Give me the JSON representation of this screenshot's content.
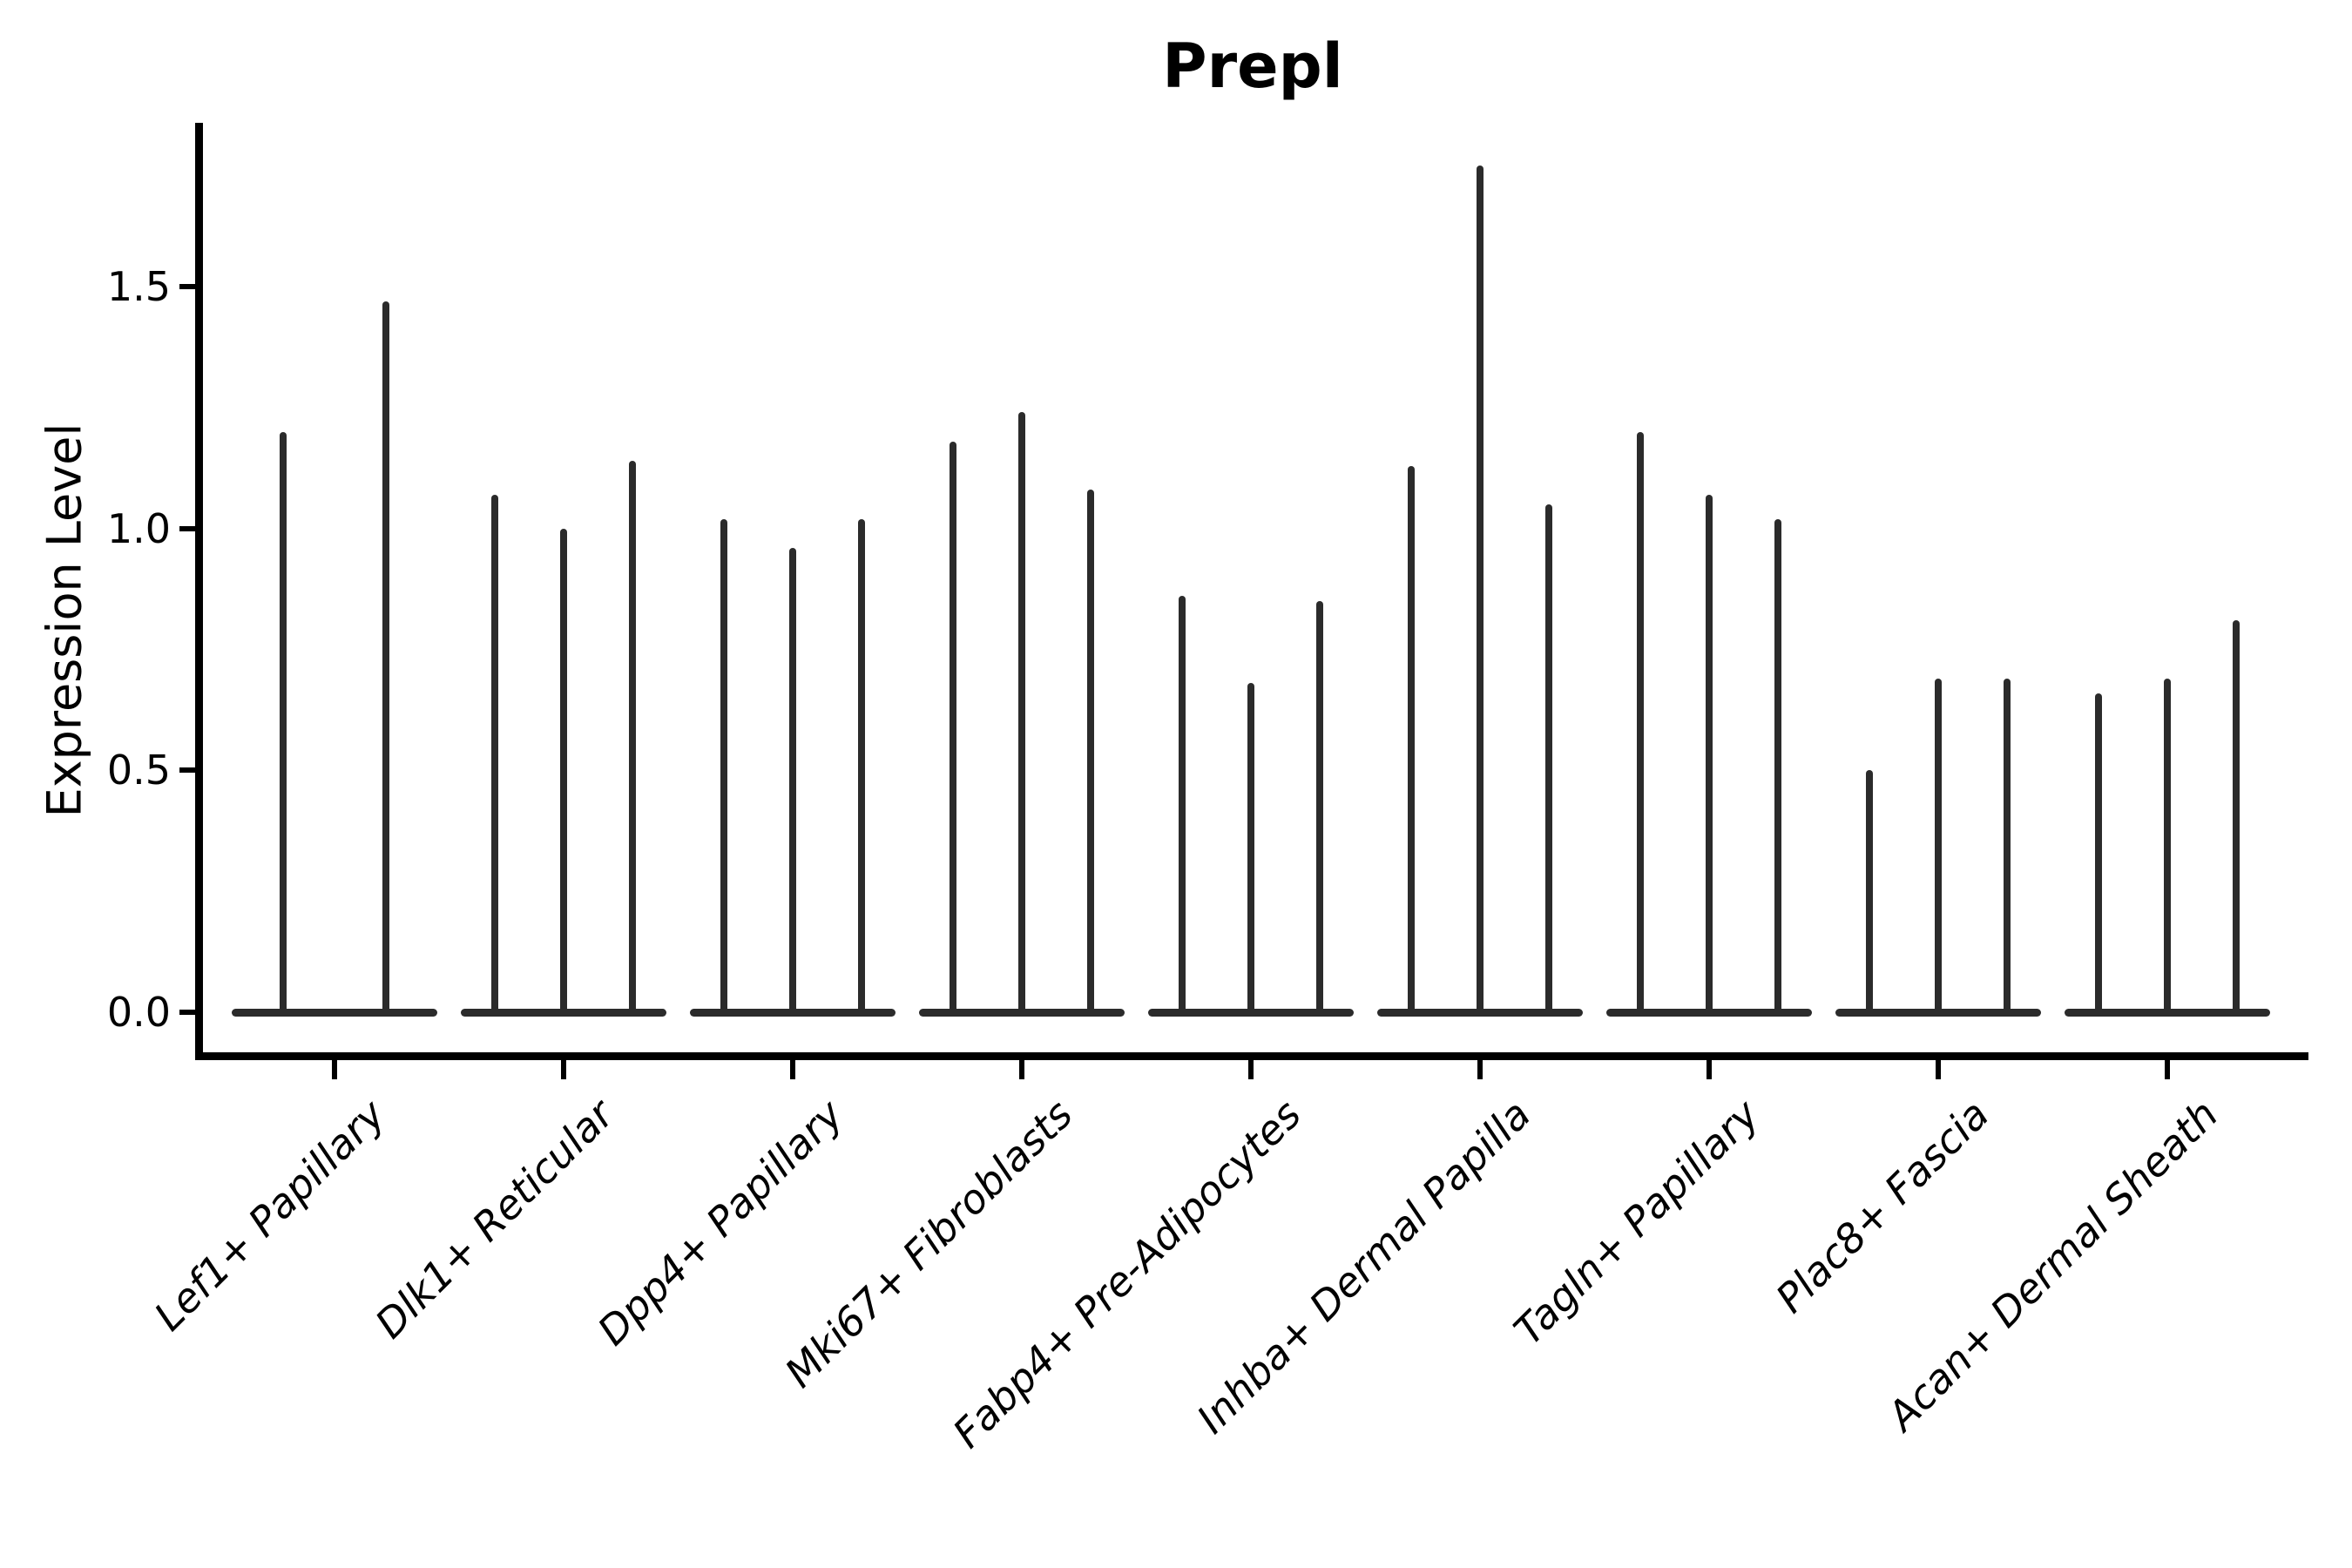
{
  "chart_data": {
    "type": "violin",
    "title": "Prepl",
    "ylabel": "Expression Level",
    "xlabel": "",
    "grid": false,
    "legend": "none",
    "ylim": [
      0,
      1.84
    ],
    "ytick_labels": [
      "0.0",
      "0.5",
      "1.0",
      "1.5"
    ],
    "ytick_values": [
      0.0,
      0.5,
      1.0,
      1.5
    ],
    "categories": [
      "Lef1+ Papillary",
      "Dlk1+ Reticular",
      "Dpp4+ Papillary",
      "Mki67+ Fibroblasts",
      "Fabp4+ Pre-Adipocytes",
      "Inhba+ Dermal Papilla",
      "Tagln+ Papillary",
      "Plac8+ Fascia",
      "Acan+ Dermal Sheath"
    ],
    "violin_max_per_category": [
      [
        1.2,
        1.47
      ],
      [
        1.07,
        1.0,
        1.14
      ],
      [
        1.02,
        0.96,
        1.02
      ],
      [
        1.18,
        1.24,
        1.08
      ],
      [
        0.86,
        0.68,
        0.85
      ],
      [
        1.13,
        1.75,
        1.05
      ],
      [
        1.2,
        1.07,
        1.02
      ],
      [
        0.5,
        0.69,
        0.69
      ],
      [
        0.66,
        0.69,
        0.81
      ]
    ],
    "violin_shape_note": "density mass at 0 (flat base bar) with thin vertical spike up to max value",
    "colors": {
      "violin": "#2b2b2b",
      "axis": "#000000",
      "text": "#000000",
      "background": "#ffffff"
    }
  }
}
